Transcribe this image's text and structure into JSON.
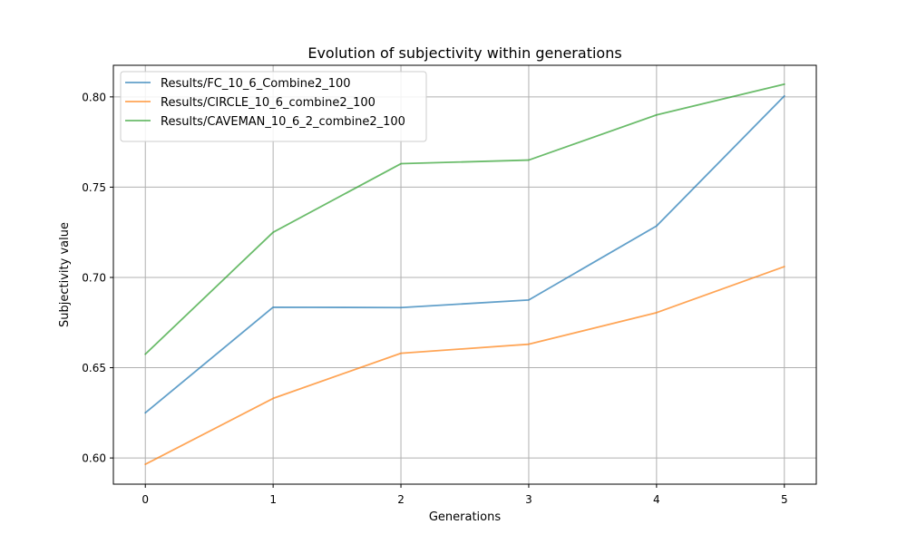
{
  "chart_data": {
    "type": "line",
    "title": "Evolution of subjectivity within generations",
    "xlabel": "Generations",
    "ylabel": "Subjectivity value",
    "x": [
      0,
      1,
      2,
      3,
      4,
      5
    ],
    "xticks": [
      "0",
      "1",
      "2",
      "3",
      "4",
      "5"
    ],
    "yticks": [
      0.6,
      0.65,
      0.7,
      0.75,
      0.8
    ],
    "ytick_labels": [
      "0.60",
      "0.65",
      "0.70",
      "0.75",
      "0.80"
    ],
    "xlim": [
      -0.25,
      5.25
    ],
    "ylim": [
      0.5855,
      0.8175
    ],
    "grid": true,
    "legend_position": "top-left",
    "series": [
      {
        "name": "Results/FC_10_6_Combine2_100",
        "color": "#1f77b4",
        "values": [
          0.625,
          0.6835,
          0.6833,
          0.6875,
          0.7285,
          0.8005
        ]
      },
      {
        "name": "Results/CIRCLE_10_6_combine2_100",
        "color": "#ff7f0e",
        "values": [
          0.5965,
          0.633,
          0.658,
          0.663,
          0.6805,
          0.706
        ]
      },
      {
        "name": "Results/CAVEMAN_10_6_2_combine2_100",
        "color": "#2ca02c",
        "values": [
          0.6575,
          0.725,
          0.763,
          0.765,
          0.79,
          0.807
        ]
      }
    ]
  }
}
